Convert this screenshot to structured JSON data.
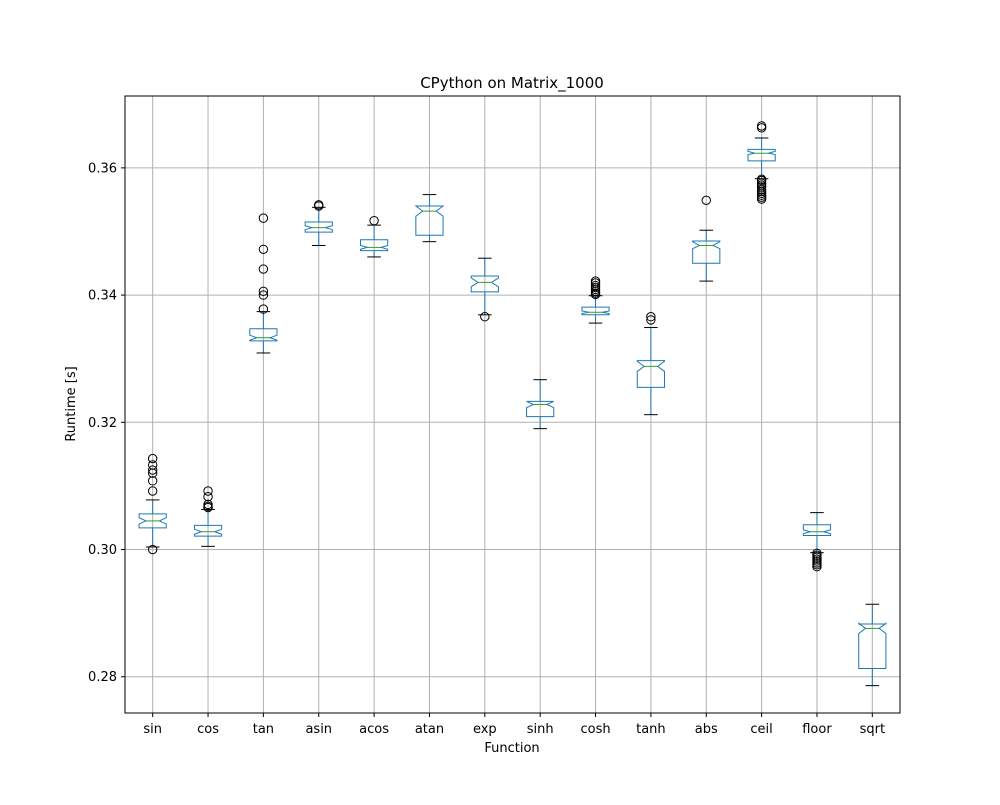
{
  "chart_data": {
    "type": "boxplot",
    "title": "CPython on Matrix_1000",
    "xlabel": "Function",
    "ylabel": "Runtime [s]",
    "ylim": [
      0.2743,
      0.3713
    ],
    "yticks": [
      0.28,
      0.3,
      0.32,
      0.34,
      0.36
    ],
    "ytick_labels": [
      "0.28",
      "0.30",
      "0.32",
      "0.34",
      "0.36"
    ],
    "grid": true,
    "notched": true,
    "colors": {
      "box": "#1f77b4",
      "median": "#2ca02c",
      "grid": "#b0b0b0",
      "flier": "#000000"
    },
    "categories": [
      "sin",
      "cos",
      "tan",
      "asin",
      "acos",
      "atan",
      "exp",
      "sinh",
      "cosh",
      "tanh",
      "abs",
      "ceil",
      "floor",
      "sqrt"
    ],
    "boxes": [
      {
        "label": "sin",
        "whislo": 0.3004,
        "q1": 0.3034,
        "med": 0.3045,
        "q3": 0.3056,
        "whishi": 0.3078,
        "notch": [
          0.304,
          0.305
        ],
        "fliers": [
          0.3,
          0.3092,
          0.3108,
          0.312,
          0.3125,
          0.3133,
          0.3143
        ]
      },
      {
        "label": "cos",
        "whislo": 0.3005,
        "q1": 0.3021,
        "med": 0.3028,
        "q3": 0.3038,
        "whishi": 0.3063,
        "notch": [
          0.3024,
          0.3032
        ],
        "fliers": [
          0.3066,
          0.3068,
          0.3071,
          0.3083,
          0.3092
        ]
      },
      {
        "label": "tan",
        "whislo": 0.3309,
        "q1": 0.3328,
        "med": 0.3333,
        "q3": 0.3347,
        "whishi": 0.3374,
        "notch": [
          0.3329,
          0.3337
        ],
        "fliers": [
          0.3378,
          0.34,
          0.3406,
          0.3441,
          0.3472,
          0.3521
        ]
      },
      {
        "label": "asin",
        "whislo": 0.3478,
        "q1": 0.3499,
        "med": 0.3506,
        "q3": 0.3515,
        "whishi": 0.3538,
        "notch": [
          0.3503,
          0.3509
        ],
        "fliers": [
          0.354,
          0.3542
        ]
      },
      {
        "label": "acos",
        "whislo": 0.346,
        "q1": 0.347,
        "med": 0.3475,
        "q3": 0.3487,
        "whishi": 0.351,
        "notch": [
          0.3472,
          0.3478
        ],
        "fliers": [
          0.3517
        ]
      },
      {
        "label": "atan",
        "whislo": 0.3484,
        "q1": 0.3494,
        "med": 0.3532,
        "q3": 0.354,
        "whishi": 0.3558,
        "notch": [
          0.3524,
          0.354
        ],
        "fliers": []
      },
      {
        "label": "exp",
        "whislo": 0.3369,
        "q1": 0.3405,
        "med": 0.342,
        "q3": 0.343,
        "whishi": 0.3458,
        "notch": [
          0.3413,
          0.3427
        ],
        "fliers": [
          0.3366
        ]
      },
      {
        "label": "sinh",
        "whislo": 0.319,
        "q1": 0.3209,
        "med": 0.3228,
        "q3": 0.3233,
        "whishi": 0.3267,
        "notch": [
          0.3223,
          0.3233
        ],
        "fliers": []
      },
      {
        "label": "cosh",
        "whislo": 0.3356,
        "q1": 0.3369,
        "med": 0.3373,
        "q3": 0.3381,
        "whishi": 0.3399,
        "notch": [
          0.3371,
          0.3375
        ],
        "fliers": [
          0.3401,
          0.3403,
          0.3406,
          0.3409,
          0.3412,
          0.3415,
          0.3419,
          0.3422
        ]
      },
      {
        "label": "tanh",
        "whislo": 0.3212,
        "q1": 0.3255,
        "med": 0.3288,
        "q3": 0.3297,
        "whishi": 0.3349,
        "notch": [
          0.328,
          0.3296
        ],
        "fliers": [
          0.3361,
          0.3366
        ]
      },
      {
        "label": "abs",
        "whislo": 0.3422,
        "q1": 0.345,
        "med": 0.3478,
        "q3": 0.3485,
        "whishi": 0.3502,
        "notch": [
          0.3473,
          0.3484
        ],
        "fliers": [
          0.3549
        ]
      },
      {
        "label": "ceil",
        "whislo": 0.3583,
        "q1": 0.3611,
        "med": 0.3623,
        "q3": 0.3629,
        "whishi": 0.3647,
        "notch": [
          0.3621,
          0.3626
        ],
        "fliers": [
          0.3551,
          0.3554,
          0.3557,
          0.356,
          0.3563,
          0.3566,
          0.357,
          0.3573,
          0.3576,
          0.358,
          0.3582,
          0.3663,
          0.3666
        ]
      },
      {
        "label": "floor",
        "whislo": 0.2995,
        "q1": 0.3022,
        "med": 0.3028,
        "q3": 0.3039,
        "whishi": 0.3058,
        "notch": [
          0.3025,
          0.3031
        ],
        "fliers": [
          0.2973,
          0.2976,
          0.2979,
          0.2982,
          0.2985,
          0.2988,
          0.2991,
          0.2994
        ]
      },
      {
        "label": "sqrt",
        "whislo": 0.2786,
        "q1": 0.2813,
        "med": 0.2876,
        "q3": 0.2883,
        "whishi": 0.2914,
        "notch": [
          0.2868,
          0.2884
        ],
        "fliers": []
      }
    ]
  }
}
